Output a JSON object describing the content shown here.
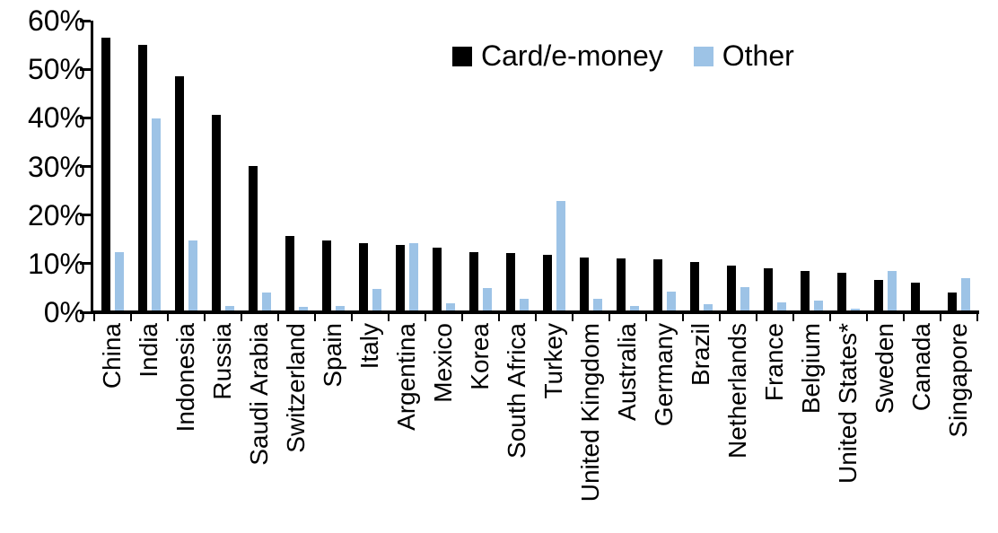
{
  "chart_data": {
    "type": "bar",
    "title": "",
    "xlabel": "",
    "ylabel": "",
    "categories": [
      "China",
      "India",
      "Indonesia",
      "Russia",
      "Saudi Arabia",
      "Switzerland",
      "Spain",
      "Italy",
      "Argentina",
      "Mexico",
      "Korea",
      "South Africa",
      "Turkey",
      "United Kingdom",
      "Australia",
      "Germany",
      "Brazil",
      "Netherlands",
      "France",
      "Belgium",
      "United States*",
      "Sweden",
      "Canada",
      "Singapore"
    ],
    "series": [
      {
        "name": "Card/e-money",
        "color": "#000000",
        "values": [
          56.5,
          55,
          48.5,
          40.5,
          30,
          15.5,
          14.5,
          14,
          13.5,
          13,
          12,
          11.8,
          11.6,
          11,
          10.7,
          10.5,
          10,
          9.3,
          8.7,
          8.2,
          7.8,
          6.4,
          5.8,
          3.8
        ]
      },
      {
        "name": "Other",
        "color": "#9DC3E6",
        "values": [
          12,
          39.7,
          14.5,
          1,
          3.7,
          0.8,
          1,
          4.5,
          13.9,
          1.5,
          4.7,
          2.4,
          22.7,
          2.4,
          1,
          3.9,
          1.3,
          4.9,
          1.6,
          2.1,
          0.3,
          8.1,
          0,
          6.6
        ]
      }
    ],
    "ylim": [
      0,
      60
    ],
    "ytick_labels": [
      "0%",
      "10%",
      "20%",
      "30%",
      "40%",
      "50%",
      "60%"
    ],
    "unit": "%",
    "grid": false,
    "legend_position": "top-center"
  }
}
